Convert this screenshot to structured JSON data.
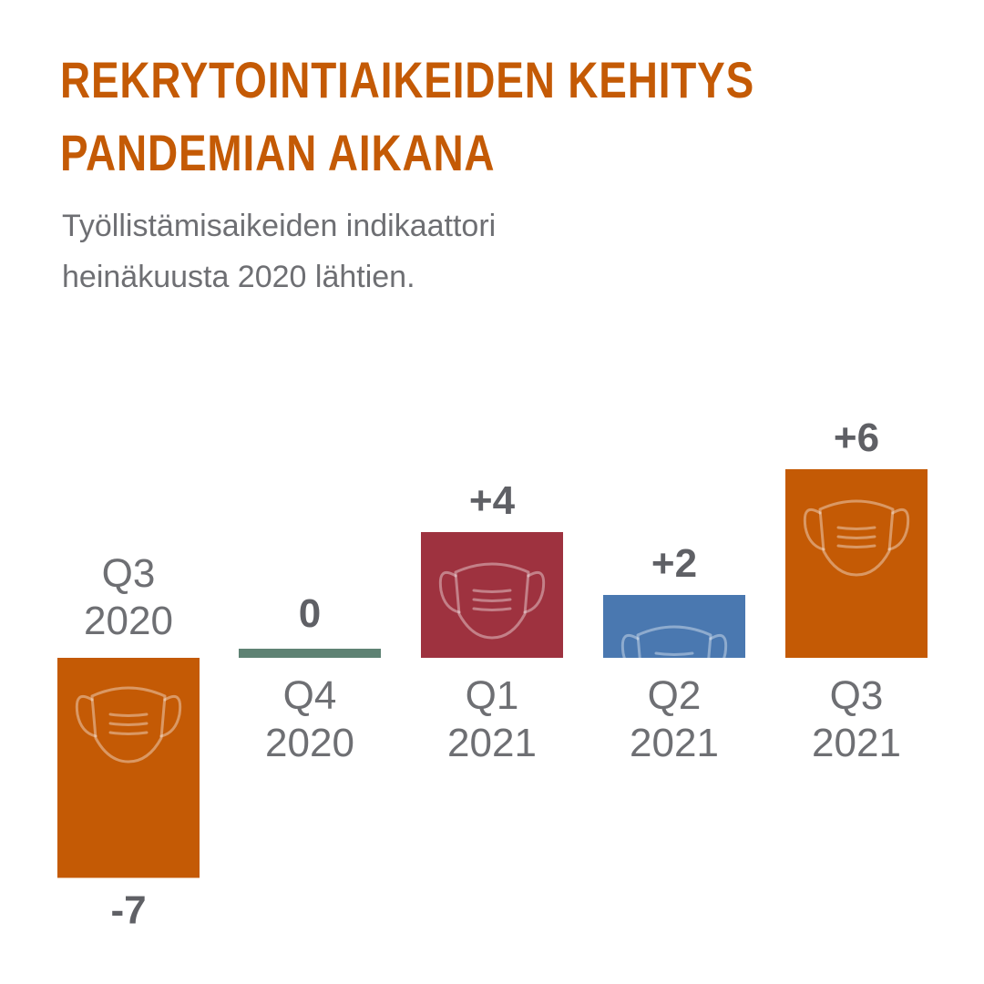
{
  "header": {
    "title_line1": "REKRYTOINTIAIKEIDEN KEHITYS",
    "title_line2": "PANDEMIAN AIKANA",
    "subtitle_line1": "Työllistämisaikeiden indikaattori",
    "subtitle_line2": "heinäkuusta 2020 lähtien."
  },
  "colors": {
    "title": "#c45a05",
    "text_gray": "#6e6f73",
    "value_gray": "#5f6065"
  },
  "chart_data": {
    "type": "bar",
    "title": "REKRYTOINTIAIKEIDEN KEHITYS PANDEMIAN AIKANA",
    "subtitle": "Työllistämisaikeiden indikaattori heinäkuusta 2020 lähtien.",
    "categories": [
      [
        "Q3",
        "2020"
      ],
      [
        "Q4",
        "2020"
      ],
      [
        "Q1",
        "2021"
      ],
      [
        "Q2",
        "2021"
      ],
      [
        "Q3",
        "2021"
      ]
    ],
    "values": [
      -7,
      0,
      4,
      2,
      6
    ],
    "value_labels": [
      "-7",
      "0",
      "+4",
      "+2",
      "+6"
    ],
    "bar_colors": [
      "#c45a05",
      "#5e8273",
      "#9e323f",
      "#4a78b0",
      "#c45a05"
    ],
    "bar_icon": "face-mask-icon",
    "ylim": [
      -7,
      6
    ],
    "grid": false,
    "legend": "none"
  }
}
